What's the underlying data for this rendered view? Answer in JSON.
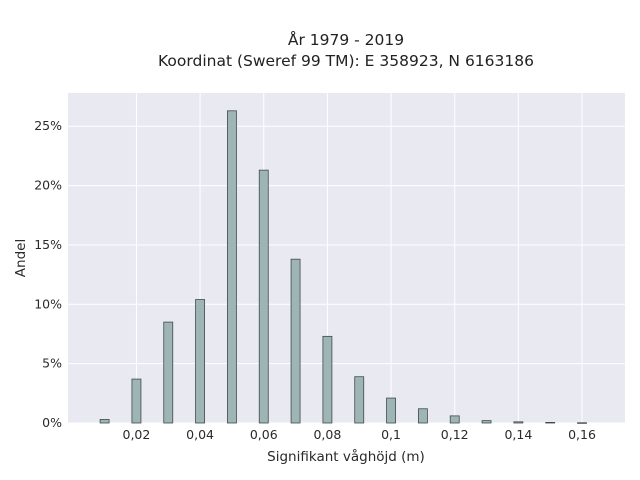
{
  "chart_data": {
    "type": "bar",
    "title_line1": "År 1979 - 2019",
    "title_line2": "Koordinat (Sweref 99 TM): E 358923, N 6163186",
    "xlabel": "Signifikant våghöjd (m)",
    "ylabel": "Andel",
    "x": [
      0.01,
      0.02,
      0.03,
      0.04,
      0.05,
      0.06,
      0.07,
      0.08,
      0.09,
      0.1,
      0.11,
      0.12,
      0.13,
      0.14,
      0.15,
      0.16
    ],
    "values": [
      0.3,
      3.7,
      8.5,
      10.4,
      26.3,
      21.3,
      13.8,
      7.3,
      3.9,
      2.1,
      1.2,
      0.6,
      0.2,
      0.1,
      0.05,
      0.02
    ],
    "xticks": [
      0.02,
      0.04,
      0.06,
      0.08,
      0.1,
      0.12,
      0.14,
      0.16
    ],
    "xtick_labels": [
      "0,02",
      "0,04",
      "0,06",
      "0,08",
      "0,1",
      "0,12",
      "0,14",
      "0,16"
    ],
    "yticks": [
      0,
      5,
      10,
      15,
      20,
      25
    ],
    "ytick_labels": [
      "0%",
      "5%",
      "10%",
      "15%",
      "20%",
      "25%"
    ],
    "xlim": [
      -0.0015,
      0.1735
    ],
    "ylim": [
      0,
      27.8
    ],
    "grid": true,
    "bar_color": "#9fb5b5",
    "bar_edge_color": "#3f4a4a",
    "plot_background": "#e9e9f1",
    "grid_color": "#ffffff"
  }
}
